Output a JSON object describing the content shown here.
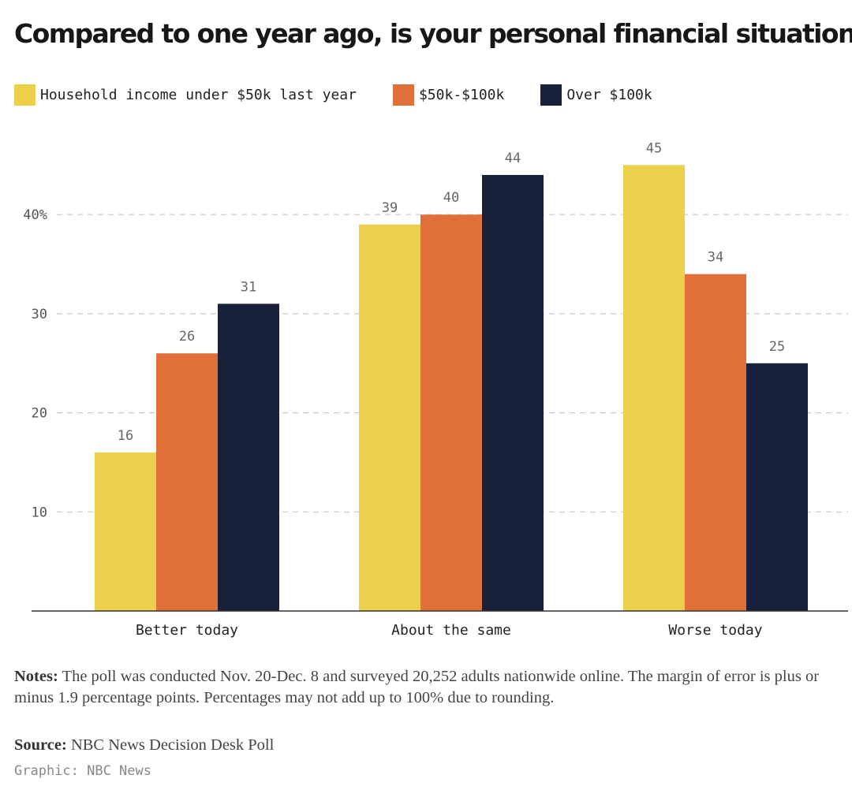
{
  "chart_data": {
    "type": "bar",
    "title": "Compared to one year ago, is your personal financial situation...",
    "categories": [
      "Better today",
      "About the same",
      "Worse today"
    ],
    "series": [
      {
        "name": "Household income under $50k last year",
        "color": "#ecd04c",
        "values": [
          16,
          39,
          45
        ]
      },
      {
        "name": "$50k-$100k",
        "color": "#e06f38",
        "values": [
          26,
          40,
          34
        ]
      },
      {
        "name": "Over $100k",
        "color": "#17213a",
        "values": [
          31,
          44,
          25
        ]
      }
    ],
    "yticks": [
      {
        "value": 10,
        "label": "10"
      },
      {
        "value": 20,
        "label": "20"
      },
      {
        "value": 30,
        "label": "30"
      },
      {
        "value": 40,
        "label": "40%"
      }
    ],
    "ylim": [
      0,
      48
    ],
    "grid": true,
    "legend_position": "top-left"
  },
  "footer": {
    "notes_label": "Notes:",
    "notes_text": " The poll was conducted Nov. 20-Dec. 8 and surveyed 20,252 adults nationwide online. The margin of error is plus or minus 1.9 percentage points. Percentages may not add up to 100% due to rounding.",
    "source_label": "Source:",
    "source_text": " NBC News Decision Desk Poll",
    "credit": "Graphic: NBC News"
  }
}
